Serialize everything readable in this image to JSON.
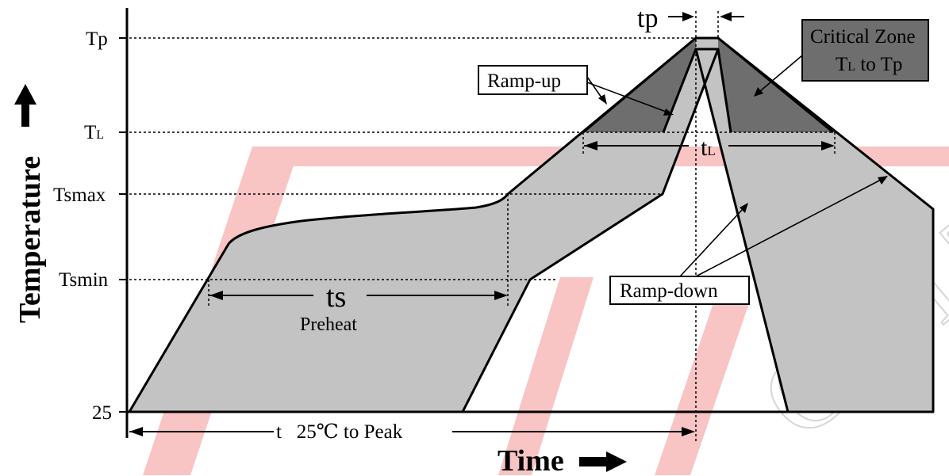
{
  "y_axis": {
    "label": "Temperature",
    "ticks": {
      "tp": "Tp",
      "tl_main": "T",
      "tl_sub": "L",
      "tsmax": "Tsmax",
      "tsmin": "Tsmin",
      "t25": "25"
    }
  },
  "x_axis": {
    "label": "Time"
  },
  "annotations": {
    "tp": "tp",
    "tl_main": "t",
    "tl_sub": "L",
    "ts": "ts",
    "preheat": "Preheat",
    "t25_peak": "t   25℃ to Peak",
    "ramp_up": "Ramp-up",
    "ramp_down": "Ramp-down",
    "critical_zone_line1": "Critical Zone",
    "critical_zone_line2_a": "T",
    "critical_zone_line2_sub": "L",
    "critical_zone_line2_b": " to Tp"
  },
  "colors": {
    "profile_fill": "#c3c3c3",
    "critical_fill": "#6e6e6e",
    "line": "#000000",
    "watermark": "#f9c4c4"
  },
  "watermark_text": "CO LTD"
}
